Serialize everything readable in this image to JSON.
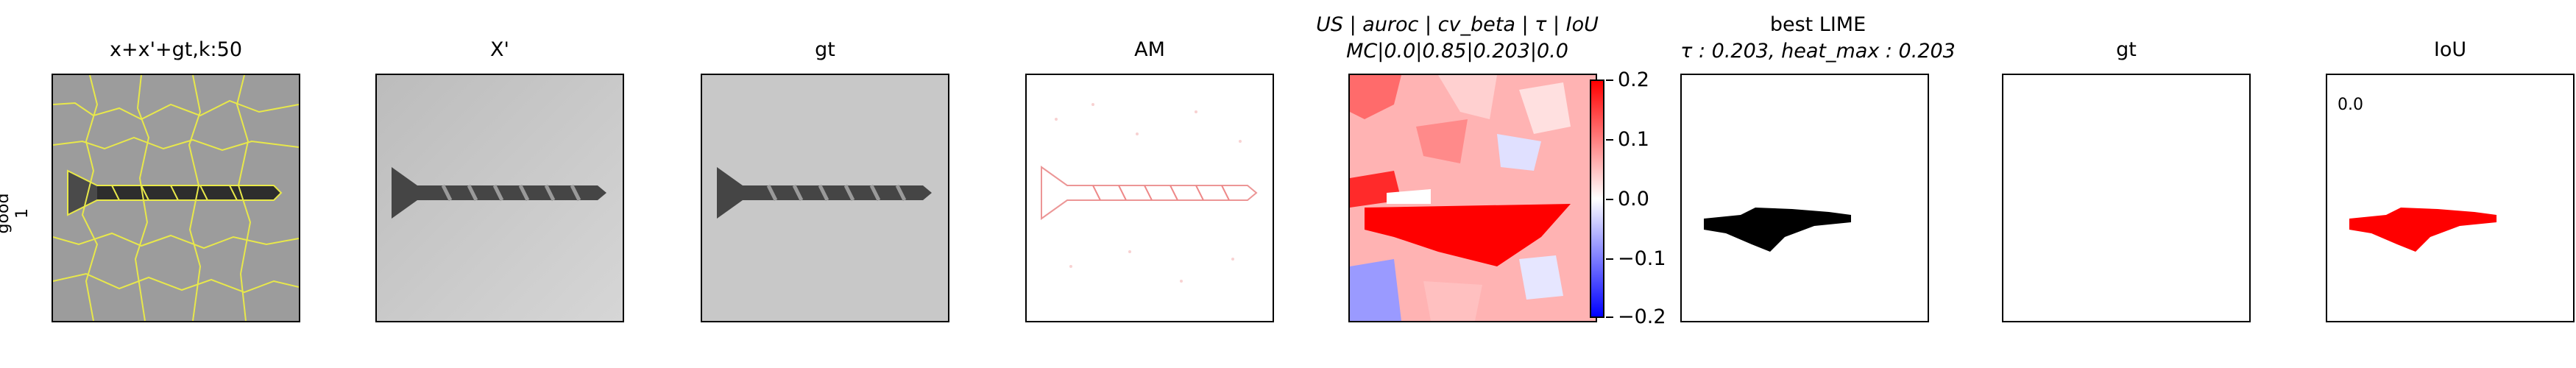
{
  "row_label": {
    "line1": "good",
    "line2": "1"
  },
  "panels": [
    {
      "title": "x+x'+gt,k:50"
    },
    {
      "title": "X'"
    },
    {
      "title": "gt"
    },
    {
      "title": "AM"
    },
    {
      "title_line1": "US | auroc | cv_beta | τ | IoU",
      "title_line2": "MC|0.0|0.85|0.203|0.0"
    },
    {
      "title_line1": "best LIME",
      "title_line2": "τ : 0.203, heat_max : 0.203"
    },
    {
      "title": "gt"
    },
    {
      "title": "IoU",
      "annotation": "0.0"
    }
  ],
  "colorbar": {
    "ticks": [
      "0.2",
      "0.1",
      "0.0",
      "−0.1",
      "−0.2"
    ],
    "colors": {
      "high": "#ff0000",
      "mid": "#ffffff",
      "low": "#0000ff"
    }
  },
  "colors": {
    "boundary": "#e8e84a",
    "mask_black": "#000000",
    "mask_red": "#ff0000"
  }
}
